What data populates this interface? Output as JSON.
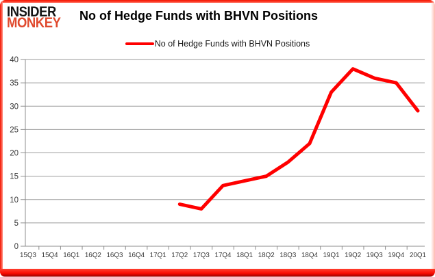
{
  "logo": {
    "line1": "INSIDER",
    "line2": "MONKEY"
  },
  "header": {
    "title": "No of Hedge Funds with BHVN Positions"
  },
  "legend": {
    "label": "No of Hedge Funds with BHVN Positions"
  },
  "colors": {
    "line": "#ff0000",
    "logo_black": "#141414",
    "logo_red": "#e0492d",
    "grid": "#9a9a9a",
    "axis": "#8c8c8c",
    "tick_text": "#363636",
    "frame_red": "#fa0a00"
  },
  "chart_data": {
    "type": "line",
    "title": "No of Hedge Funds with BHVN Positions",
    "categories": [
      "15Q3",
      "15Q4",
      "16Q1",
      "16Q2",
      "16Q3",
      "16Q4",
      "17Q1",
      "17Q2",
      "17Q3",
      "17Q4",
      "18Q1",
      "18Q2",
      "18Q3",
      "18Q4",
      "19Q1",
      "19Q2",
      "19Q3",
      "19Q4",
      "20Q1"
    ],
    "series": [
      {
        "name": "No of Hedge Funds with BHVN Positions",
        "color": "#ff0000",
        "values": [
          null,
          null,
          null,
          null,
          null,
          null,
          null,
          9,
          8,
          13,
          14,
          15,
          18,
          22,
          33,
          38,
          36,
          35,
          29
        ]
      }
    ],
    "xlabel": "",
    "ylabel": "",
    "ylim": [
      0,
      40
    ],
    "ytick_step": 5,
    "yticks": [
      0,
      5,
      10,
      15,
      20,
      25,
      30,
      35,
      40
    ],
    "grid": true,
    "legend_position": "top-center"
  }
}
